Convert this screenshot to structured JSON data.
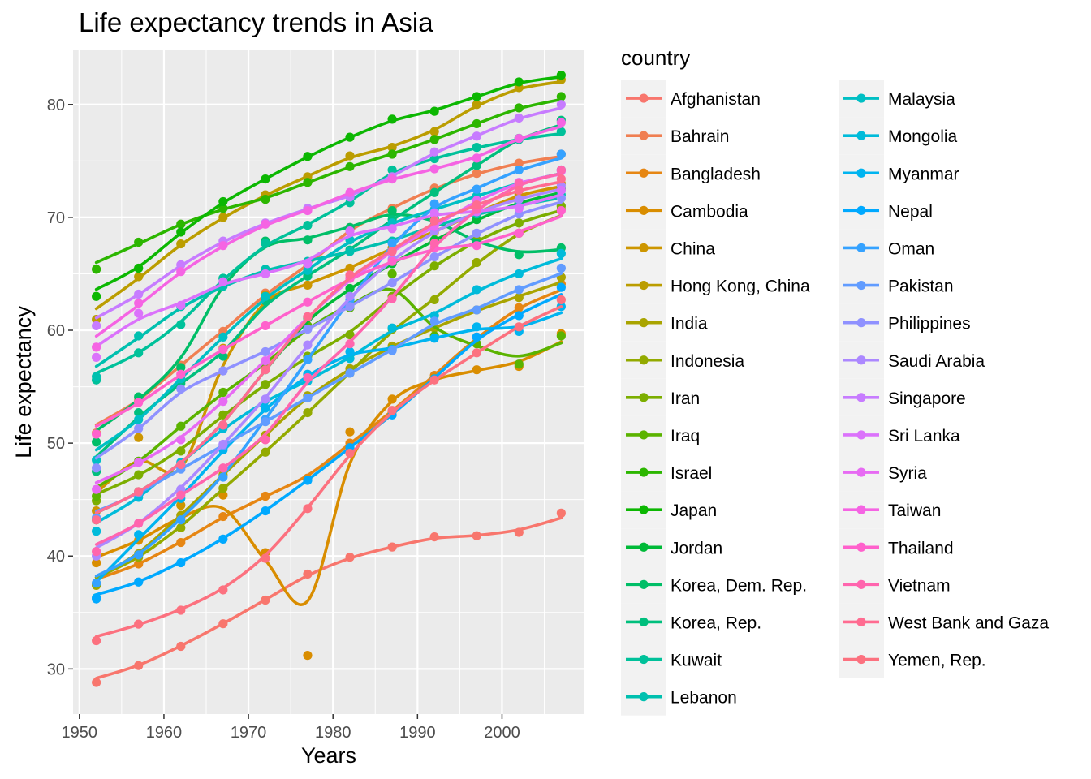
{
  "chart_data": {
    "type": "line",
    "title": "Life expectancy trends in Asia",
    "xlabel": "Years",
    "ylabel": "Life expectancy",
    "xlim": [
      1949.25,
      2009.75
    ],
    "ylim": [
      26.0,
      84.8
    ],
    "xticks": [
      1950,
      1960,
      1970,
      1980,
      1990,
      2000
    ],
    "yticks": [
      30,
      40,
      50,
      60,
      70,
      80
    ],
    "grid": true,
    "legend_title": "country",
    "legend_placement": "right",
    "smoothed": true,
    "x": [
      1952,
      1957,
      1962,
      1967,
      1972,
      1977,
      1982,
      1987,
      1992,
      1997,
      2002,
      2007
    ],
    "series": [
      {
        "name": "Afghanistan",
        "color": "#F8766D",
        "values": [
          28.8,
          30.3,
          32.0,
          34.0,
          36.1,
          38.4,
          39.9,
          40.8,
          41.7,
          41.8,
          42.1,
          43.8
        ]
      },
      {
        "name": "Bahrain",
        "color": "#F07F52",
        "values": [
          50.9,
          53.8,
          56.9,
          59.9,
          63.3,
          65.6,
          69.1,
          70.8,
          72.6,
          73.9,
          74.8,
          75.6
        ]
      },
      {
        "name": "Bangladesh",
        "color": "#E68613",
        "values": [
          37.5,
          39.3,
          41.2,
          43.5,
          45.3,
          46.9,
          50.0,
          52.8,
          56.0,
          59.4,
          62.0,
          64.1
        ]
      },
      {
        "name": "Cambodia",
        "color": "#D98D00",
        "values": [
          39.4,
          41.4,
          43.4,
          45.4,
          40.3,
          31.2,
          51.0,
          53.9,
          55.8,
          56.5,
          56.8,
          59.7
        ]
      },
      {
        "name": "China",
        "color": "#CD9600",
        "values": [
          44.0,
          50.5,
          44.5,
          58.4,
          63.1,
          64.0,
          65.5,
          67.3,
          68.7,
          70.4,
          72.0,
          73.0
        ]
      },
      {
        "name": "Hong Kong, China",
        "color": "#BB9D00",
        "values": [
          60.96,
          64.75,
          67.65,
          70.0,
          72.0,
          73.6,
          75.45,
          76.2,
          77.6,
          80.0,
          81.5,
          82.2
        ]
      },
      {
        "name": "India",
        "color": "#A9A400",
        "values": [
          37.4,
          40.2,
          43.6,
          47.2,
          50.7,
          54.2,
          56.6,
          58.6,
          60.2,
          61.8,
          62.9,
          64.7
        ]
      },
      {
        "name": "Indonesia",
        "color": "#93AA00",
        "values": [
          37.5,
          39.9,
          42.5,
          46.0,
          49.2,
          52.7,
          56.2,
          60.1,
          62.7,
          66.0,
          68.6,
          70.7
        ]
      },
      {
        "name": "Iran",
        "color": "#7CAE00",
        "values": [
          44.9,
          47.2,
          49.3,
          52.5,
          55.2,
          57.7,
          59.6,
          63.0,
          65.7,
          68.0,
          69.5,
          71.0
        ]
      },
      {
        "name": "Iraq",
        "color": "#5BB300",
        "values": [
          45.3,
          48.4,
          51.5,
          54.5,
          56.9,
          60.4,
          62.0,
          65.0,
          59.5,
          58.8,
          57.0,
          59.5
        ]
      },
      {
        "name": "Israel",
        "color": "#2CB600",
        "values": [
          65.4,
          67.8,
          69.4,
          70.8,
          71.6,
          73.1,
          74.5,
          75.6,
          76.9,
          78.3,
          79.7,
          80.7
        ]
      },
      {
        "name": "Japan",
        "color": "#0CB702",
        "values": [
          63.0,
          65.5,
          68.7,
          71.4,
          73.4,
          75.4,
          77.1,
          78.7,
          79.4,
          80.7,
          82.0,
          82.6
        ]
      },
      {
        "name": "Jordan",
        "color": "#00BA38",
        "values": [
          43.2,
          45.7,
          48.1,
          51.6,
          56.5,
          61.1,
          63.7,
          65.9,
          68.0,
          69.8,
          71.3,
          72.5
        ]
      },
      {
        "name": "Korea, Dem. Rep.",
        "color": "#00BE67",
        "values": [
          50.1,
          54.1,
          56.7,
          64.6,
          67.9,
          68.0,
          69.1,
          70.6,
          69.9,
          67.7,
          66.7,
          67.3
        ]
      },
      {
        "name": "Korea, Rep.",
        "color": "#00BF7D",
        "values": [
          47.5,
          52.7,
          55.3,
          57.7,
          62.6,
          64.8,
          67.1,
          69.8,
          72.2,
          74.6,
          77.0,
          78.6
        ]
      },
      {
        "name": "Kuwait",
        "color": "#00C19A",
        "values": [
          55.6,
          58.0,
          60.5,
          64.6,
          67.7,
          69.3,
          71.3,
          74.2,
          75.2,
          76.2,
          76.9,
          77.6
        ]
      },
      {
        "name": "Lebanon",
        "color": "#00C0AF",
        "values": [
          55.9,
          59.5,
          62.1,
          63.9,
          65.4,
          66.1,
          66.98,
          67.9,
          69.3,
          70.3,
          71.0,
          71.99
        ]
      },
      {
        "name": "Malaysia",
        "color": "#00BFC4",
        "values": [
          48.5,
          52.1,
          55.7,
          59.4,
          63.0,
          65.3,
          68.0,
          69.5,
          70.7,
          71.9,
          73.0,
          74.2
        ]
      },
      {
        "name": "Mongolia",
        "color": "#00BBDA",
        "values": [
          42.2,
          45.2,
          48.3,
          51.3,
          53.8,
          55.5,
          57.5,
          60.2,
          61.3,
          63.6,
          65.0,
          66.8
        ]
      },
      {
        "name": "Myanmar",
        "color": "#00B4F0",
        "values": [
          36.3,
          41.9,
          45.1,
          49.4,
          53.1,
          56.1,
          58.1,
          58.3,
          59.3,
          60.3,
          59.9,
          62.1
        ]
      },
      {
        "name": "Nepal",
        "color": "#00A9FF",
        "values": [
          36.2,
          37.7,
          39.4,
          41.5,
          44.0,
          46.7,
          49.6,
          52.5,
          55.7,
          59.4,
          61.3,
          63.8
        ]
      },
      {
        "name": "Oman",
        "color": "#35A2FF",
        "values": [
          37.6,
          40.1,
          43.2,
          46.99,
          52.1,
          57.4,
          62.7,
          67.7,
          71.2,
          72.5,
          74.2,
          75.6
        ]
      },
      {
        "name": "Pakistan",
        "color": "#619CFF",
        "values": [
          43.4,
          45.6,
          47.7,
          49.8,
          51.9,
          54.0,
          56.2,
          58.2,
          60.8,
          61.8,
          63.6,
          65.5
        ]
      },
      {
        "name": "Philippines",
        "color": "#8F91FF",
        "values": [
          47.8,
          51.3,
          54.8,
          56.4,
          58.1,
          60.1,
          62.1,
          64.2,
          66.5,
          68.6,
          70.3,
          71.7
        ]
      },
      {
        "name": "Saudi Arabia",
        "color": "#AC88FF",
        "values": [
          40.0,
          42.9,
          45.9,
          49.9,
          53.9,
          58.7,
          63.0,
          66.3,
          68.8,
          70.5,
          71.6,
          72.8
        ]
      },
      {
        "name": "Singapore",
        "color": "#C77CFF",
        "values": [
          60.4,
          63.2,
          65.8,
          67.9,
          69.5,
          70.8,
          71.8,
          73.6,
          75.8,
          77.2,
          78.8,
          80.0
        ]
      },
      {
        "name": "Sri Lanka",
        "color": "#DB72FB",
        "values": [
          57.6,
          61.5,
          62.2,
          64.3,
          65.0,
          65.9,
          68.8,
          69.0,
          70.4,
          70.5,
          70.8,
          72.4
        ]
      },
      {
        "name": "Syria",
        "color": "#E76BF3",
        "values": [
          45.9,
          48.3,
          50.3,
          53.7,
          57.3,
          61.2,
          64.6,
          66.97,
          69.2,
          71.5,
          73.1,
          74.1
        ]
      },
      {
        "name": "Taiwan",
        "color": "#F564E3",
        "values": [
          58.5,
          62.4,
          65.2,
          67.5,
          69.4,
          70.6,
          72.2,
          73.4,
          74.3,
          75.25,
          76.99,
          78.4
        ]
      },
      {
        "name": "Thailand",
        "color": "#FF61CC",
        "values": [
          50.8,
          53.6,
          56.1,
          58.3,
          60.4,
          62.5,
          64.6,
          66.1,
          67.3,
          67.5,
          68.6,
          70.6
        ]
      },
      {
        "name": "Vietnam",
        "color": "#FF65AE",
        "values": [
          40.4,
          42.9,
          45.4,
          47.8,
          50.3,
          55.8,
          58.8,
          62.8,
          67.7,
          70.7,
          73.0,
          74.2
        ]
      },
      {
        "name": "West Bank and Gaza",
        "color": "#FF6C91",
        "values": [
          43.2,
          45.7,
          48.1,
          51.6,
          56.5,
          61.2,
          64.9,
          67.0,
          69.7,
          71.1,
          72.4,
          73.4
        ]
      },
      {
        "name": "Yemen, Rep.",
        "color": "#FC717F",
        "values": [
          32.5,
          33.97,
          35.2,
          37.0,
          39.8,
          44.2,
          49.1,
          52.9,
          55.6,
          58.0,
          60.3,
          62.7
        ]
      }
    ]
  }
}
